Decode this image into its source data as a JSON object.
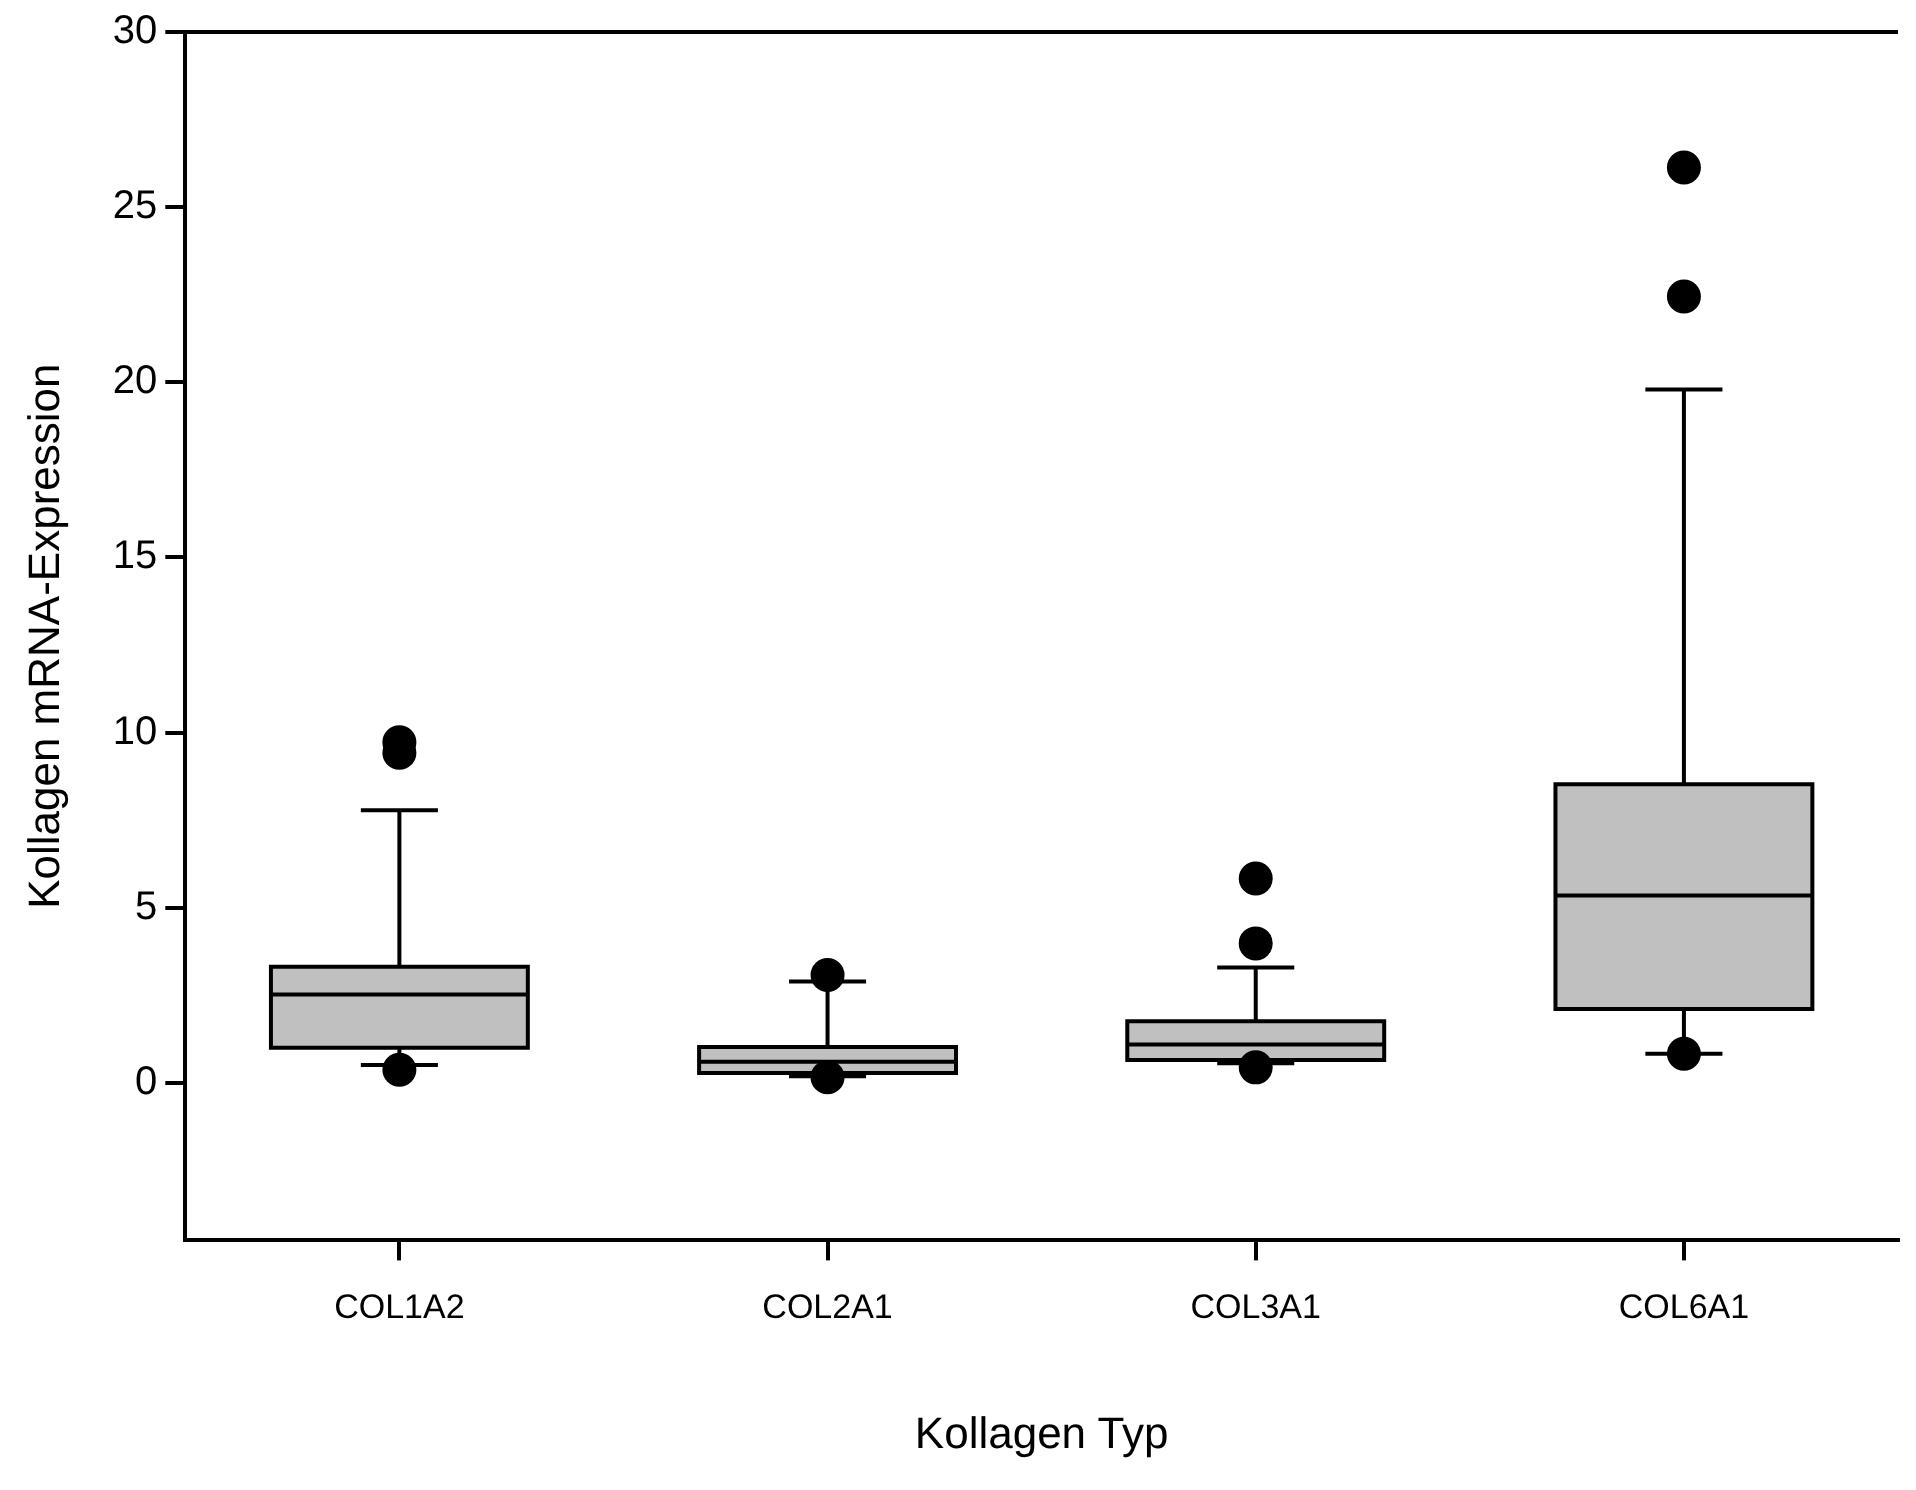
{
  "chart_data": {
    "type": "box",
    "xlabel": "Kollagen Typ",
    "ylabel": "Kollagen mRNA-Expression",
    "categories": [
      "COL1A2",
      "COL2A1",
      "COL3A1",
      "COL6A1"
    ],
    "series": [
      {
        "color": "#c0c0c0",
        "boxes": [
          {
            "low": 0.51,
            "q1": 1.0,
            "median": 2.52,
            "q3": 3.31,
            "high": 7.78,
            "outliers": [
              9.42,
              9.72,
              0.37
            ]
          },
          {
            "low": 0.19,
            "q1": 0.28,
            "median": 0.6,
            "q3": 1.02,
            "high": 2.89,
            "outliers": [
              3.08,
              0.16
            ]
          },
          {
            "low": 0.56,
            "q1": 0.65,
            "median": 1.09,
            "q3": 1.76,
            "high": 3.29,
            "outliers": [
              3.98,
              5.83,
              0.44
            ]
          },
          {
            "low": 0.83,
            "q1": 2.11,
            "median": 5.35,
            "q3": 8.52,
            "high": 19.79,
            "outliers": [
              22.45,
              26.13,
              0.83
            ]
          }
        ]
      }
    ],
    "ylim": [
      -4.5,
      30
    ],
    "yticks": [
      0,
      5,
      10,
      15,
      20,
      25,
      30
    ],
    "grid": false,
    "legend": false
  }
}
